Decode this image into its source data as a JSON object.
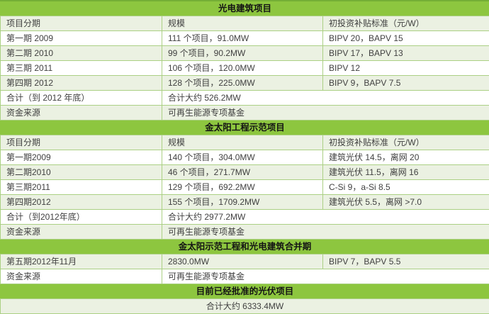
{
  "colors": {
    "section_header_bg": "#8DC63F",
    "row_light_bg": "#EBF1E2",
    "row_white_bg": "#FFFFFF",
    "border": "#ABD084",
    "body_text": "#404040",
    "header_text": "#141414"
  },
  "sections": [
    {
      "title": "光电建筑项目",
      "columns": [
        "项目分期",
        "规模",
        "初投资补贴标准（元/W）"
      ],
      "rows": [
        {
          "cells": [
            "第一期 2009",
            "111 个项目，91.0MW",
            "BIPV 20，BAPV 15"
          ],
          "spans": [
            1,
            1,
            1
          ],
          "shade": "white"
        },
        {
          "cells": [
            "第二期 2010",
            "99 个项目，90.2MW",
            "BIPV 17，BAPV 13"
          ],
          "spans": [
            1,
            1,
            1
          ],
          "shade": "light"
        },
        {
          "cells": [
            "第三期 2011",
            "106 个项目，120.0MW",
            "BIPV 12"
          ],
          "spans": [
            1,
            1,
            1
          ],
          "shade": "white"
        },
        {
          "cells": [
            "第四期 2012",
            "128 个项目，225.0MW",
            "BIPV 9，BAPV 7.5"
          ],
          "spans": [
            1,
            1,
            1
          ],
          "shade": "light"
        },
        {
          "cells": [
            "合计（到 2012 年底）",
            "合计大约 526.2MW"
          ],
          "spans": [
            1,
            2
          ],
          "shade": "white"
        },
        {
          "cells": [
            "资金来源",
            "可再生能源专项基金"
          ],
          "spans": [
            1,
            2
          ],
          "shade": "light"
        }
      ]
    },
    {
      "title": "金太阳工程示范项目",
      "columns": [
        "项目分期",
        "规模",
        "初投资补贴标准（元/W）"
      ],
      "rows": [
        {
          "cells": [
            "第一期2009",
            "140 个项目，304.0MW",
            "建筑光伏 14.5，离网 20"
          ],
          "spans": [
            1,
            1,
            1
          ],
          "shade": "white"
        },
        {
          "cells": [
            "第二期2010",
            "46 个项目，271.7MW",
            "建筑光伏 11.5，离网 16"
          ],
          "spans": [
            1,
            1,
            1
          ],
          "shade": "light"
        },
        {
          "cells": [
            "第三期2011",
            "129 个项目，692.2MW",
            "C-Si 9，a-Si 8.5"
          ],
          "spans": [
            1,
            1,
            1
          ],
          "shade": "white"
        },
        {
          "cells": [
            "第四期2012",
            "155 个项目，1709.2MW",
            "建筑光伏 5.5，离网 >7.0"
          ],
          "spans": [
            1,
            1,
            1
          ],
          "shade": "light"
        },
        {
          "cells": [
            "合计（到2012年底）",
            "合计大约 2977.2MW"
          ],
          "spans": [
            1,
            2
          ],
          "shade": "white"
        },
        {
          "cells": [
            "资金来源",
            "可再生能源专项基金"
          ],
          "spans": [
            1,
            2
          ],
          "shade": "light"
        }
      ]
    },
    {
      "title": "金太阳示范工程和光电建筑合并期",
      "columns": null,
      "rows": [
        {
          "cells": [
            "第五期2012年11月",
            "2830.0MW",
            "BIPV 7，BAPV 5.5"
          ],
          "spans": [
            1,
            1,
            1
          ],
          "shade": "light"
        },
        {
          "cells": [
            "资金来源",
            "可再生能源专项基金"
          ],
          "spans": [
            1,
            2
          ],
          "shade": "white"
        }
      ]
    },
    {
      "title": "目前已经批准的光伏项目",
      "columns": null,
      "rows": [
        {
          "cells": [
            "合计大约 6333.4MW"
          ],
          "spans": [
            3
          ],
          "shade": "light",
          "center": true
        }
      ]
    }
  ]
}
